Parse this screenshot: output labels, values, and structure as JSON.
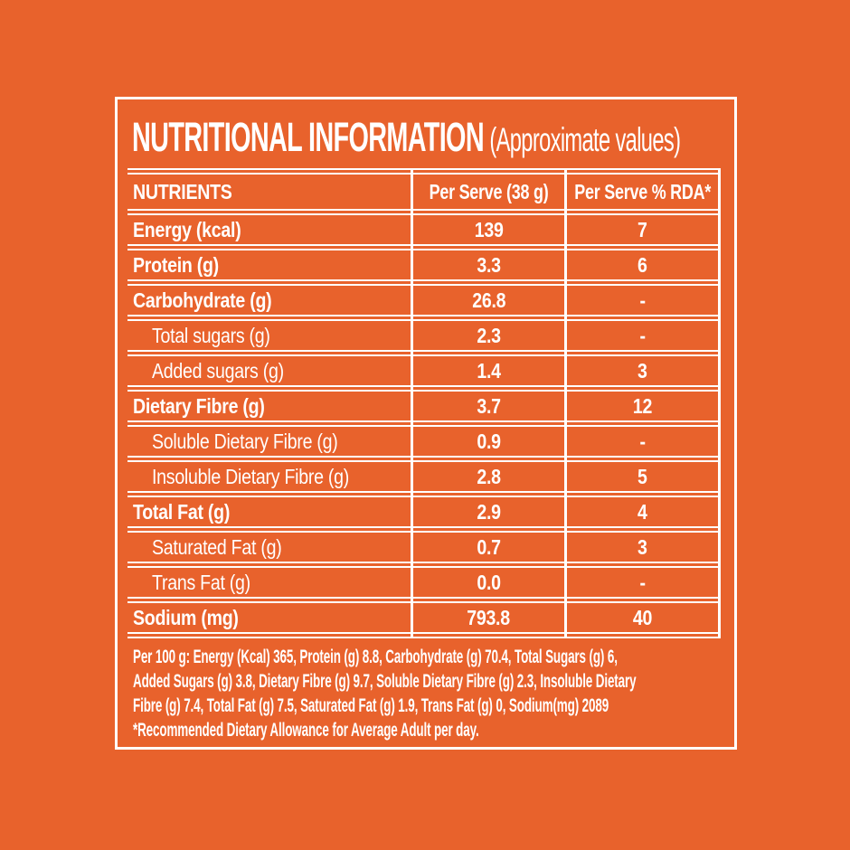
{
  "theme": {
    "background": "#E8622C",
    "line_color": "#FFFFFF",
    "text_color": "#FFFFFF"
  },
  "title": {
    "main": "NUTRITIONAL INFORMATION",
    "sub": "(Approximate values)"
  },
  "table": {
    "columns": [
      "NUTRIENTS",
      "Per Serve (38 g)",
      "Per Serve % RDA*"
    ],
    "rows": [
      {
        "label": "Energy (kcal)",
        "per_serve": "139",
        "rda": "7",
        "indent": false
      },
      {
        "label": "Protein (g)",
        "per_serve": "3.3",
        "rda": "6",
        "indent": false
      },
      {
        "label": "Carbohydrate (g)",
        "per_serve": "26.8",
        "rda": "-",
        "indent": false
      },
      {
        "label": "Total sugars (g)",
        "per_serve": "2.3",
        "rda": "-",
        "indent": true
      },
      {
        "label": "Added sugars (g)",
        "per_serve": "1.4",
        "rda": "3",
        "indent": true
      },
      {
        "label": "Dietary Fibre (g)",
        "per_serve": "3.7",
        "rda": "12",
        "indent": false
      },
      {
        "label": "Soluble Dietary Fibre (g)",
        "per_serve": "0.9",
        "rda": "-",
        "indent": true
      },
      {
        "label": "Insoluble Dietary Fibre (g)",
        "per_serve": "2.8",
        "rda": "5",
        "indent": true
      },
      {
        "label": "Total Fat (g)",
        "per_serve": "2.9",
        "rda": "4",
        "indent": false
      },
      {
        "label": "Saturated Fat (g)",
        "per_serve": "0.7",
        "rda": "3",
        "indent": true
      },
      {
        "label": "Trans Fat (g)",
        "per_serve": "0.0",
        "rda": "-",
        "indent": true
      },
      {
        "label": "Sodium (mg)",
        "per_serve": "793.8",
        "rda": "40",
        "indent": false
      }
    ]
  },
  "footer": {
    "per_100g_lines": [
      "Per 100 g: Energy (Kcal) 365, Protein (g) 8.8, Carbohydrate (g) 70.4, Total Sugars (g) 6,",
      "Added Sugars (g) 3.8, Dietary Fibre (g) 9.7, Soluble Dietary Fibre (g) 2.3, Insoluble Dietary",
      "Fibre (g) 7.4, Total Fat (g) 7.5, Saturated Fat (g) 1.9, Trans Fat (g) 0, Sodium(mg) 2089"
    ],
    "rda_note": "*Recommended Dietary Allowance for Average Adult per day."
  }
}
